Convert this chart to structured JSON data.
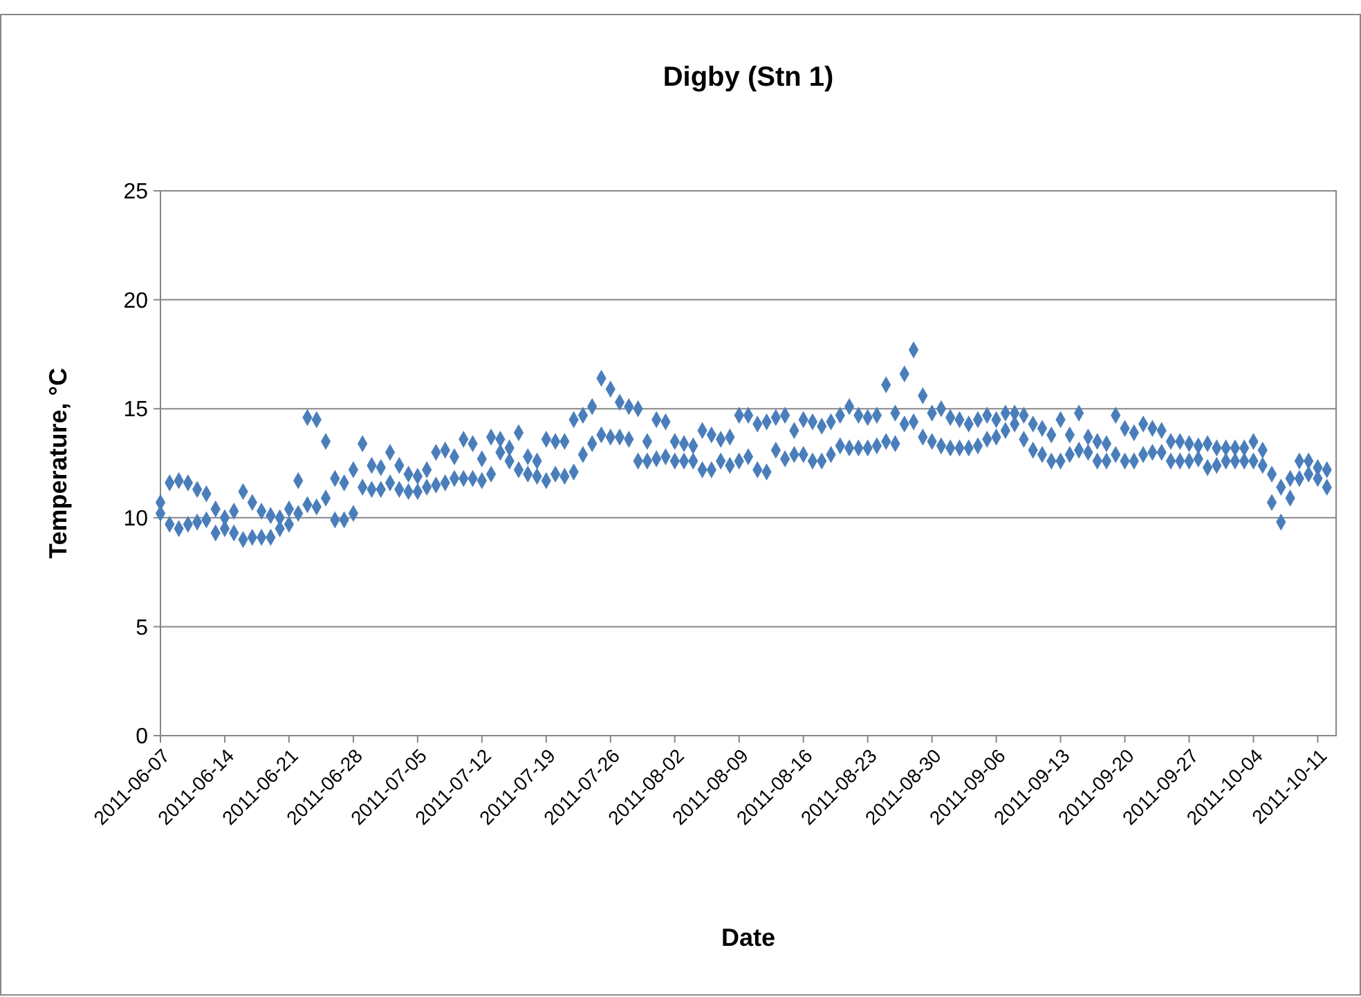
{
  "chart_data": {
    "type": "scatter",
    "title": "Digby (Stn 1)",
    "xlabel": "Date",
    "ylabel": "Temperature, °C",
    "marker": "diamond",
    "grid": "y",
    "xlim": [
      "2011-06-07",
      "2011-10-13"
    ],
    "xticks": [
      "2011-06-07",
      "2011-06-14",
      "2011-06-21",
      "2011-06-28",
      "2011-07-05",
      "2011-07-12",
      "2011-07-19",
      "2011-07-26",
      "2011-08-02",
      "2011-08-09",
      "2011-08-16",
      "2011-08-23",
      "2011-08-30",
      "2011-09-06",
      "2011-09-13",
      "2011-09-20",
      "2011-09-27",
      "2011-10-04",
      "2011-10-11"
    ],
    "ylim": [
      0,
      25
    ],
    "yticks": [
      0,
      5,
      10,
      15,
      20,
      25
    ],
    "series": [
      {
        "color": "#4a7ebb",
        "x": [
          "2011-06-07",
          "2011-06-07",
          "2011-06-08",
          "2011-06-08",
          "2011-06-09",
          "2011-06-09",
          "2011-06-10",
          "2011-06-10",
          "2011-06-11",
          "2011-06-11",
          "2011-06-12",
          "2011-06-12",
          "2011-06-13",
          "2011-06-13",
          "2011-06-14",
          "2011-06-14",
          "2011-06-15",
          "2011-06-15",
          "2011-06-16",
          "2011-06-16",
          "2011-06-17",
          "2011-06-17",
          "2011-06-18",
          "2011-06-18",
          "2011-06-19",
          "2011-06-19",
          "2011-06-20",
          "2011-06-20",
          "2011-06-21",
          "2011-06-21",
          "2011-06-22",
          "2011-06-22",
          "2011-06-23",
          "2011-06-23",
          "2011-06-24",
          "2011-06-24",
          "2011-06-25",
          "2011-06-25",
          "2011-06-26",
          "2011-06-26",
          "2011-06-27",
          "2011-06-27",
          "2011-06-28",
          "2011-06-28",
          "2011-06-29",
          "2011-06-29",
          "2011-06-30",
          "2011-06-30",
          "2011-07-01",
          "2011-07-01",
          "2011-07-02",
          "2011-07-02",
          "2011-07-03",
          "2011-07-03",
          "2011-07-04",
          "2011-07-04",
          "2011-07-05",
          "2011-07-05",
          "2011-07-06",
          "2011-07-06",
          "2011-07-07",
          "2011-07-07",
          "2011-07-08",
          "2011-07-08",
          "2011-07-09",
          "2011-07-09",
          "2011-07-10",
          "2011-07-10",
          "2011-07-11",
          "2011-07-11",
          "2011-07-12",
          "2011-07-12",
          "2011-07-13",
          "2011-07-13",
          "2011-07-14",
          "2011-07-14",
          "2011-07-15",
          "2011-07-15",
          "2011-07-16",
          "2011-07-16",
          "2011-07-17",
          "2011-07-17",
          "2011-07-18",
          "2011-07-18",
          "2011-07-19",
          "2011-07-19",
          "2011-07-20",
          "2011-07-20",
          "2011-07-21",
          "2011-07-21",
          "2011-07-22",
          "2011-07-22",
          "2011-07-23",
          "2011-07-23",
          "2011-07-24",
          "2011-07-24",
          "2011-07-25",
          "2011-07-25",
          "2011-07-26",
          "2011-07-26",
          "2011-07-27",
          "2011-07-27",
          "2011-07-28",
          "2011-07-28",
          "2011-07-29",
          "2011-07-29",
          "2011-07-30",
          "2011-07-30",
          "2011-07-31",
          "2011-07-31",
          "2011-08-01",
          "2011-08-01",
          "2011-08-02",
          "2011-08-02",
          "2011-08-03",
          "2011-08-03",
          "2011-08-04",
          "2011-08-04",
          "2011-08-05",
          "2011-08-05",
          "2011-08-06",
          "2011-08-06",
          "2011-08-07",
          "2011-08-07",
          "2011-08-08",
          "2011-08-08",
          "2011-08-09",
          "2011-08-09",
          "2011-08-10",
          "2011-08-10",
          "2011-08-11",
          "2011-08-11",
          "2011-08-12",
          "2011-08-12",
          "2011-08-13",
          "2011-08-13",
          "2011-08-14",
          "2011-08-14",
          "2011-08-15",
          "2011-08-15",
          "2011-08-16",
          "2011-08-16",
          "2011-08-17",
          "2011-08-17",
          "2011-08-18",
          "2011-08-18",
          "2011-08-19",
          "2011-08-19",
          "2011-08-20",
          "2011-08-20",
          "2011-08-21",
          "2011-08-21",
          "2011-08-22",
          "2011-08-22",
          "2011-08-23",
          "2011-08-23",
          "2011-08-24",
          "2011-08-24",
          "2011-08-25",
          "2011-08-25",
          "2011-08-26",
          "2011-08-26",
          "2011-08-27",
          "2011-08-27",
          "2011-08-28",
          "2011-08-28",
          "2011-08-29",
          "2011-08-29",
          "2011-08-30",
          "2011-08-30",
          "2011-08-31",
          "2011-08-31",
          "2011-09-01",
          "2011-09-01",
          "2011-09-02",
          "2011-09-02",
          "2011-09-03",
          "2011-09-03",
          "2011-09-04",
          "2011-09-04",
          "2011-09-05",
          "2011-09-05",
          "2011-09-06",
          "2011-09-06",
          "2011-09-07",
          "2011-09-07",
          "2011-09-08",
          "2011-09-08",
          "2011-09-09",
          "2011-09-09",
          "2011-09-10",
          "2011-09-10",
          "2011-09-11",
          "2011-09-11",
          "2011-09-12",
          "2011-09-12",
          "2011-09-13",
          "2011-09-13",
          "2011-09-14",
          "2011-09-14",
          "2011-09-15",
          "2011-09-15",
          "2011-09-16",
          "2011-09-16",
          "2011-09-17",
          "2011-09-17",
          "2011-09-18",
          "2011-09-18",
          "2011-09-19",
          "2011-09-19",
          "2011-09-20",
          "2011-09-20",
          "2011-09-21",
          "2011-09-21",
          "2011-09-22",
          "2011-09-22",
          "2011-09-23",
          "2011-09-23",
          "2011-09-24",
          "2011-09-24",
          "2011-09-25",
          "2011-09-25",
          "2011-09-26",
          "2011-09-26",
          "2011-09-27",
          "2011-09-27",
          "2011-09-28",
          "2011-09-28",
          "2011-09-29",
          "2011-09-29",
          "2011-09-30",
          "2011-09-30",
          "2011-10-01",
          "2011-10-01",
          "2011-10-02",
          "2011-10-02",
          "2011-10-03",
          "2011-10-03",
          "2011-10-04",
          "2011-10-04",
          "2011-10-05",
          "2011-10-05",
          "2011-10-06",
          "2011-10-06",
          "2011-10-07",
          "2011-10-07",
          "2011-10-08",
          "2011-10-08",
          "2011-10-09",
          "2011-10-09",
          "2011-10-10",
          "2011-10-10",
          "2011-10-11",
          "2011-10-11",
          "2011-10-12",
          "2011-10-12"
        ],
        "values": [
          10.7,
          10.2,
          11.6,
          9.7,
          11.7,
          9.5,
          11.6,
          9.7,
          11.3,
          9.8,
          11.1,
          9.9,
          10.4,
          9.3,
          10.0,
          9.5,
          10.3,
          9.3,
          11.2,
          9.0,
          10.7,
          9.1,
          10.3,
          9.1,
          10.1,
          9.1,
          10.0,
          9.5,
          10.4,
          9.7,
          11.7,
          10.2,
          14.6,
          10.6,
          14.5,
          10.5,
          13.5,
          10.9,
          11.8,
          9.9,
          11.6,
          9.9,
          12.2,
          10.2,
          13.4,
          11.4,
          12.4,
          11.3,
          12.3,
          11.3,
          13.0,
          11.6,
          12.4,
          11.3,
          12.0,
          11.2,
          11.9,
          11.2,
          12.2,
          11.4,
          13.0,
          11.5,
          13.1,
          11.6,
          12.8,
          11.8,
          13.6,
          11.8,
          13.4,
          11.8,
          12.7,
          11.7,
          13.7,
          12.0,
          13.6,
          13.0,
          13.2,
          12.6,
          13.9,
          12.2,
          12.8,
          12.0,
          12.6,
          11.9,
          13.6,
          11.7,
          13.5,
          12.0,
          13.5,
          11.9,
          14.5,
          12.1,
          14.7,
          12.9,
          15.1,
          13.4,
          16.4,
          13.8,
          15.9,
          13.7,
          15.3,
          13.7,
          15.1,
          13.6,
          15.0,
          12.6,
          13.5,
          12.6,
          14.5,
          12.7,
          14.4,
          12.8,
          13.5,
          12.6,
          13.4,
          12.6,
          13.3,
          12.6,
          14.0,
          12.2,
          13.8,
          12.2,
          13.6,
          12.6,
          13.7,
          12.4,
          14.7,
          12.6,
          14.7,
          12.8,
          14.3,
          12.2,
          14.4,
          12.1,
          14.6,
          13.1,
          14.7,
          12.7,
          14.0,
          12.9,
          14.5,
          12.9,
          14.4,
          12.6,
          14.2,
          12.6,
          14.4,
          12.9,
          14.7,
          13.3,
          15.1,
          13.2,
          14.7,
          13.2,
          14.6,
          13.2,
          14.7,
          13.3,
          16.1,
          13.5,
          14.8,
          13.4,
          16.6,
          14.3,
          17.7,
          14.4,
          15.6,
          13.7,
          14.8,
          13.5,
          15.0,
          13.3,
          14.6,
          13.2,
          14.5,
          13.2,
          14.3,
          13.2,
          14.5,
          13.3,
          14.7,
          13.6,
          14.5,
          13.7,
          14.8,
          14.0,
          14.8,
          14.3,
          14.7,
          13.6,
          14.3,
          13.1,
          14.1,
          12.9,
          13.8,
          12.6,
          14.5,
          12.6,
          13.8,
          12.9,
          14.8,
          13.1,
          13.7,
          13.0,
          13.5,
          12.6,
          13.4,
          12.6,
          14.7,
          12.9,
          14.1,
          12.6,
          13.9,
          12.6,
          14.3,
          12.9,
          14.1,
          13.0,
          14.0,
          13.0,
          13.5,
          12.6,
          13.5,
          12.6,
          13.4,
          12.6,
          13.3,
          12.7,
          13.4,
          12.3,
          13.2,
          12.4,
          13.2,
          12.6,
          13.2,
          12.6,
          13.2,
          12.6,
          13.5,
          12.6,
          13.1,
          12.4,
          12.0,
          10.7,
          11.4,
          9.8,
          11.8,
          10.9,
          12.6,
          11.8,
          12.6,
          12.0,
          12.3,
          11.8,
          12.2,
          11.4
        ]
      }
    ]
  }
}
